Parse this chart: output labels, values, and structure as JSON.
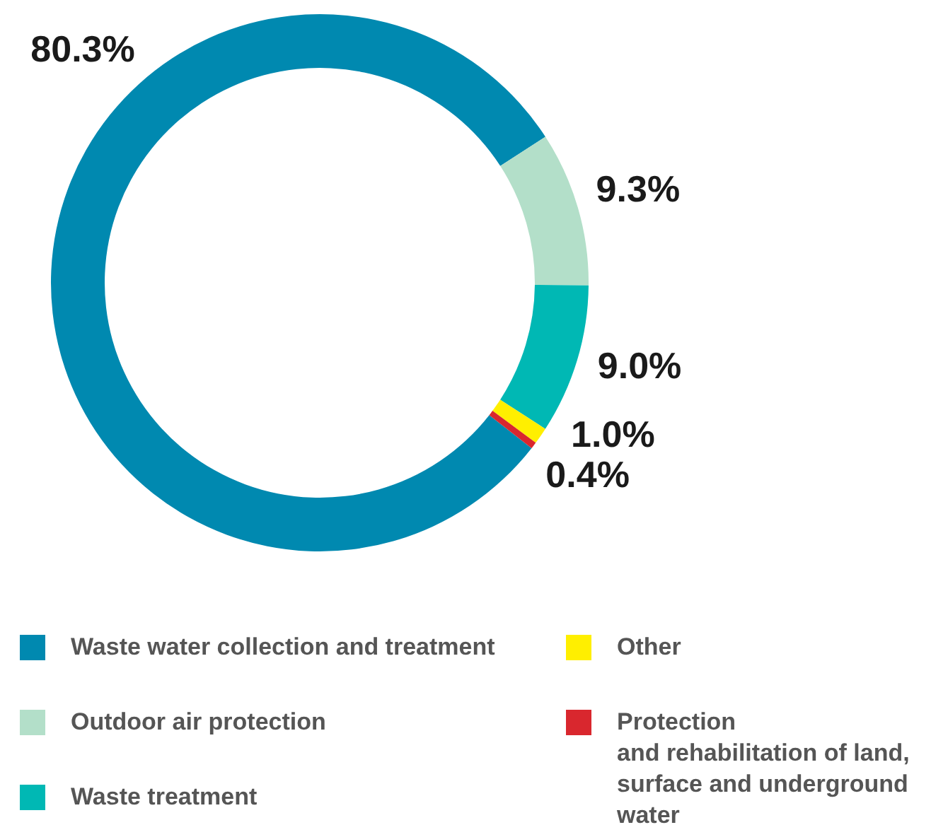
{
  "chart_data": {
    "type": "donut",
    "categories": [
      "Waste water collection and treatment",
      "Outdoor air protection",
      "Waste treatment",
      "Other",
      "Protection\nand rehabilitation of land,\nsurface and underground\nwater"
    ],
    "values": [
      80.3,
      9.3,
      9.0,
      1.0,
      0.4
    ],
    "colors": [
      "#0089b0",
      "#b3dfc9",
      "#00b8b4",
      "#ffef00",
      "#d9272e"
    ],
    "value_labels": [
      "80.3%",
      "9.3%",
      "9.0%",
      "1.0%",
      "0.4%"
    ],
    "legend": "bottom"
  }
}
